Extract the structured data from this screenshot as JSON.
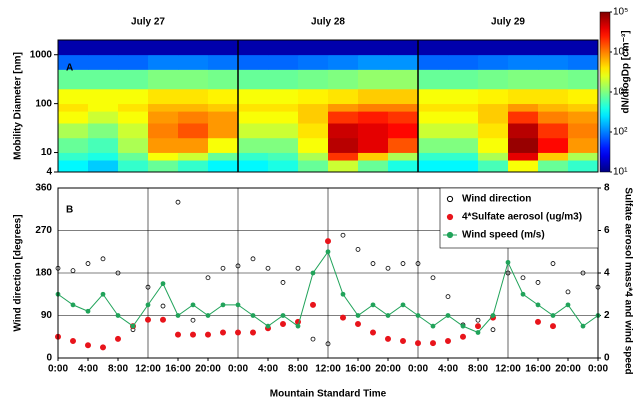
{
  "chart_data": [
    {
      "type": "heatmap",
      "panel_label": "A",
      "ylabel": "Mobility Diameter [nm]",
      "colorbar_label": "dN/dlogDp [cm⁻³]",
      "day_labels": [
        "July 27",
        "July 28",
        "July 29"
      ],
      "day_lines": [
        24,
        48
      ],
      "xlim": [
        0,
        72
      ],
      "ylim": [
        4,
        2000
      ],
      "ylog": true,
      "yticks": [
        4,
        10,
        100,
        1000
      ],
      "colorscale": "jet",
      "zlog": true,
      "zlim": [
        10,
        100000
      ],
      "zticks": [
        {
          "value": 10,
          "label": "10¹"
        },
        {
          "value": 100,
          "label": "10²"
        },
        {
          "value": 1000,
          "label": "10³"
        },
        {
          "value": 10000,
          "label": "10⁴"
        },
        {
          "value": 100000,
          "label": "10⁵"
        }
      ],
      "xbins": [
        0,
        4,
        8,
        12,
        16,
        20,
        24,
        28,
        32,
        36,
        40,
        44,
        48,
        52,
        56,
        60,
        64,
        68,
        72
      ],
      "ybins": [
        4,
        7,
        10,
        20,
        40,
        70,
        100,
        200,
        500,
        1000,
        2000
      ],
      "z": [
        [
          300,
          200,
          500,
          800,
          500,
          300,
          300,
          400,
          800,
          2000,
          800,
          400,
          300,
          300,
          600,
          3000,
          800,
          500
        ],
        [
          500,
          400,
          800,
          3000,
          2000,
          800,
          500,
          600,
          1500,
          20000,
          5000,
          1500,
          500,
          500,
          1500,
          40000,
          5000,
          1500
        ],
        [
          800,
          600,
          1500,
          8000,
          8000,
          3000,
          1000,
          1000,
          3000,
          60000,
          40000,
          15000,
          1000,
          1000,
          3000,
          80000,
          30000,
          8000
        ],
        [
          1500,
          1000,
          2000,
          10000,
          15000,
          8000,
          2000,
          2000,
          4000,
          50000,
          40000,
          30000,
          2000,
          2000,
          4000,
          60000,
          20000,
          10000
        ],
        [
          3000,
          2000,
          3000,
          8000,
          10000,
          8000,
          3000,
          3000,
          5000,
          20000,
          25000,
          20000,
          3000,
          3000,
          5000,
          20000,
          10000,
          8000
        ],
        [
          4000,
          3000,
          4000,
          6000,
          6000,
          5000,
          4000,
          4000,
          5000,
          8000,
          10000,
          10000,
          4000,
          4000,
          5000,
          8000,
          6000,
          5000
        ],
        [
          3000,
          3000,
          3000,
          4000,
          4000,
          3500,
          3000,
          3000,
          3500,
          4000,
          5000,
          5000,
          3000,
          3000,
          3500,
          4000,
          4000,
          3500
        ],
        [
          800,
          800,
          800,
          1000,
          1000,
          900,
          800,
          800,
          900,
          1000,
          1200,
          1200,
          800,
          800,
          900,
          1000,
          1000,
          900
        ],
        [
          80,
          80,
          80,
          100,
          100,
          90,
          80,
          80,
          90,
          100,
          120,
          120,
          80,
          80,
          90,
          100,
          100,
          90
        ],
        [
          15,
          15,
          15,
          15,
          15,
          15,
          15,
          15,
          15,
          15,
          15,
          15,
          15,
          15,
          15,
          15,
          15,
          15
        ]
      ]
    },
    {
      "type": "scatter",
      "panel_label": "B",
      "xlabel": "Mountain Standard Time",
      "ylabel": "Wind direction [degrees]",
      "y2label": "Sulfate aerosol mass*4 and wind speed",
      "xlim": [
        0,
        72
      ],
      "ylim": [
        0,
        360
      ],
      "yticks": [
        0,
        90,
        180,
        270,
        360
      ],
      "y2lim": [
        0,
        8
      ],
      "y2ticks": [
        0,
        2,
        4,
        6,
        8
      ],
      "grid": true,
      "legend": "top-right",
      "xticks": [
        {
          "value": 0,
          "label": "0:00"
        },
        {
          "value": 4,
          "label": "4:00"
        },
        {
          "value": 8,
          "label": "8:00"
        },
        {
          "value": 12,
          "label": "12:00"
        },
        {
          "value": 16,
          "label": "16:00"
        },
        {
          "value": 20,
          "label": "20:00"
        },
        {
          "value": 24,
          "label": "0:00"
        },
        {
          "value": 28,
          "label": "4:00"
        },
        {
          "value": 32,
          "label": "8:00"
        },
        {
          "value": 36,
          "label": "12:00"
        },
        {
          "value": 40,
          "label": "16:00"
        },
        {
          "value": 44,
          "label": "20:00"
        },
        {
          "value": 48,
          "label": "0:00"
        },
        {
          "value": 52,
          "label": "4:00"
        },
        {
          "value": 56,
          "label": "8:00"
        },
        {
          "value": 60,
          "label": "12:00"
        },
        {
          "value": 64,
          "label": "16:00"
        },
        {
          "value": 68,
          "label": "20:00"
        },
        {
          "value": 72,
          "label": "0:00"
        }
      ],
      "x": [
        0,
        2,
        4,
        6,
        8,
        10,
        12,
        14,
        16,
        18,
        20,
        22,
        24,
        26,
        28,
        30,
        32,
        34,
        36,
        38,
        40,
        42,
        44,
        46,
        48,
        50,
        52,
        54,
        56,
        58,
        60,
        62,
        64,
        66,
        68,
        70,
        72
      ],
      "series": [
        {
          "name": "Wind direction",
          "color": "#000000",
          "mode": "open-markers",
          "values": [
            190,
            185,
            200,
            210,
            180,
            60,
            150,
            110,
            330,
            80,
            170,
            190,
            195,
            210,
            190,
            160,
            190,
            40,
            30,
            260,
            230,
            200,
            190,
            200,
            200,
            170,
            130,
            70,
            80,
            60,
            180,
            170,
            160,
            200,
            140,
            180,
            150
          ]
        },
        {
          "name": "4*Sulfate aerosol (ug/m3)",
          "color": "#e8141b",
          "mode": "markers",
          "axis": "y2",
          "values": [
            1.0,
            0.8,
            0.6,
            0.5,
            0.9,
            1.5,
            1.8,
            1.8,
            1.1,
            1.1,
            1.1,
            1.2,
            1.2,
            1.2,
            1.4,
            1.6,
            1.7,
            2.5,
            5.5,
            1.9,
            1.6,
            1.2,
            0.9,
            0.8,
            0.7,
            0.7,
            0.8,
            1.0,
            1.5,
            1.9,
            null,
            null,
            1.7,
            1.5,
            null,
            null,
            null
          ]
        },
        {
          "name": "Wind speed (m/s)",
          "color": "#21a35a",
          "mode": "lines+markers",
          "axis": "y2",
          "values": [
            3,
            2.5,
            2.2,
            3,
            2,
            1.5,
            2.5,
            3.5,
            2,
            2.5,
            2,
            2.5,
            2.5,
            2,
            1.5,
            2,
            1.5,
            4,
            5,
            3,
            2,
            2.5,
            2,
            2.5,
            2,
            1.5,
            2,
            1.5,
            1.2,
            2,
            4.5,
            3,
            2.5,
            2,
            2.5,
            1.5,
            2
          ]
        }
      ]
    }
  ]
}
